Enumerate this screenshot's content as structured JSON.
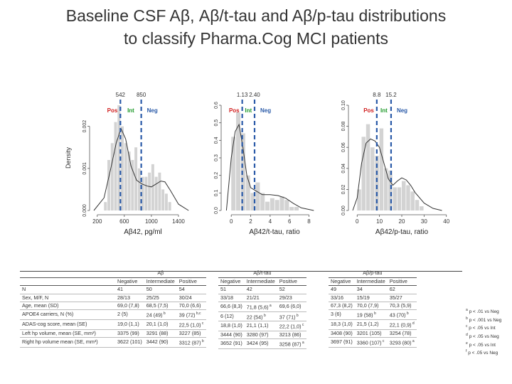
{
  "title_line1": "Baseline CSF Aβ, Aβ/t-tau and Aβ/p-tau distributions",
  "title_line2": "to classify Pharma.Cog MCI patients",
  "colors": {
    "pos": "#d01c1c",
    "int": "#1f9a2b",
    "neg": "#2a5aa8",
    "bar": "#d3d3d3",
    "curve": "#333333"
  },
  "chart_data": [
    {
      "type": "bar",
      "title": "",
      "xlabel": "Aβ42, pg/ml",
      "ylabel": "Density",
      "xlim": [
        150,
        1600
      ],
      "ylim": [
        0,
        0.0025
      ],
      "xticks": [
        200,
        600,
        1000,
        1400
      ],
      "yticks": [
        0.0,
        0.001,
        0.002
      ],
      "ytick_labels": [
        "0.000",
        "0.001",
        "0.002"
      ],
      "bin_width": 50,
      "bins_start": [
        300,
        350,
        400,
        450,
        500,
        550,
        600,
        650,
        700,
        750,
        800,
        850,
        900,
        950,
        1000,
        1050,
        1100,
        1150,
        1200,
        1250
      ],
      "bin_heights": [
        0.0002,
        0.0012,
        0.0016,
        0.0021,
        0.0025,
        0.002,
        0.0016,
        0.0014,
        0.0012,
        0.0015,
        0.001,
        0.0008,
        0.0008,
        0.0009,
        0.0011,
        0.0008,
        0.0009,
        0.0005,
        0.0004,
        0.0002
      ],
      "density_x": [
        150,
        300,
        400,
        480,
        550,
        620,
        700,
        780,
        860,
        940,
        1000,
        1060,
        1140,
        1200,
        1280,
        1400,
        1550
      ],
      "density_y": [
        0.0,
        0.0003,
        0.001,
        0.0016,
        0.00195,
        0.0017,
        0.00105,
        0.00072,
        0.00063,
        0.00058,
        0.00056,
        0.00062,
        0.0007,
        0.00068,
        0.00048,
        0.00015,
        0.0
      ],
      "cutoffs": [
        {
          "label": "Pos",
          "value": 542,
          "tick": "542"
        },
        {
          "label": "Int",
          "value": null
        },
        {
          "label": "Neg",
          "value": 850,
          "tick": "850"
        }
      ]
    },
    {
      "type": "bar",
      "title": "",
      "xlabel": "Aβ42/t-tau, ratio",
      "ylabel": "",
      "xlim": [
        -0.6,
        9.5
      ],
      "ylim": [
        0,
        0.6
      ],
      "xticks": [
        0,
        2,
        4,
        6,
        8
      ],
      "yticks": [
        0.0,
        0.1,
        0.2,
        0.3,
        0.4,
        0.5,
        0.6
      ],
      "ytick_labels": [
        "0.0",
        "0.1",
        "0.2",
        "0.3",
        "0.4",
        "0.5",
        "0.6"
      ],
      "bin_width": 0.5,
      "bins_start": [
        0.0,
        0.5,
        1.0,
        1.5,
        2.0,
        2.5,
        3.0,
        3.5,
        4.0,
        4.5,
        5.0,
        5.5,
        6.0,
        6.5
      ],
      "bin_heights": [
        0.42,
        0.56,
        0.44,
        0.2,
        0.1,
        0.16,
        0.1,
        0.05,
        0.07,
        0.06,
        0.08,
        0.06,
        0.02,
        0.02
      ],
      "density_x": [
        -0.5,
        0.0,
        0.4,
        0.8,
        1.2,
        1.6,
        2.0,
        2.6,
        3.2,
        4.0,
        4.8,
        5.6,
        6.4,
        7.2,
        8.5
      ],
      "density_y": [
        0.0,
        0.3,
        0.45,
        0.49,
        0.36,
        0.2,
        0.13,
        0.11,
        0.09,
        0.09,
        0.085,
        0.07,
        0.04,
        0.015,
        0.0
      ],
      "cutoffs": [
        {
          "label": "Pos",
          "value": 1.13,
          "tick": "1.13"
        },
        {
          "label": "Int",
          "value": null
        },
        {
          "label": "Neg",
          "value": 2.4,
          "tick": "2.40"
        }
      ]
    },
    {
      "type": "bar",
      "title": "",
      "xlabel": "Aβ42/p-tau, ratio",
      "ylabel": "",
      "xlim": [
        -2,
        42
      ],
      "ylim": [
        0,
        0.1
      ],
      "xticks": [
        0,
        10,
        20,
        30,
        40
      ],
      "yticks": [
        0.0,
        0.02,
        0.04,
        0.06,
        0.08,
        0.1
      ],
      "ytick_labels": [
        "0.00",
        "0.02",
        "0.04",
        "0.06",
        "0.08",
        "0.10"
      ],
      "bin_width": 2,
      "bins_start": [
        0,
        2,
        4,
        6,
        8,
        10,
        12,
        14,
        16,
        18,
        20,
        22,
        24,
        26,
        28
      ],
      "bin_heights": [
        0.02,
        0.07,
        0.082,
        0.06,
        0.052,
        0.078,
        0.04,
        0.038,
        0.022,
        0.022,
        0.028,
        0.024,
        0.018,
        0.01,
        0.004
      ],
      "density_x": [
        -2,
        0,
        2,
        4,
        6,
        8,
        10,
        12,
        14,
        16,
        18,
        20,
        22,
        24,
        26,
        30,
        34,
        38
      ],
      "density_y": [
        0.0,
        0.012,
        0.045,
        0.064,
        0.068,
        0.066,
        0.06,
        0.045,
        0.03,
        0.024,
        0.028,
        0.031,
        0.029,
        0.024,
        0.017,
        0.007,
        0.002,
        0.0
      ],
      "cutoffs": [
        {
          "label": "Pos",
          "value": 8.8,
          "tick": "8.8"
        },
        {
          "label": "Int",
          "value": null
        },
        {
          "label": "Neg",
          "value": 15.2,
          "tick": "15.2"
        }
      ]
    }
  ],
  "table": {
    "row_labels": [
      "N",
      "Sex, M/F, N",
      "Age, mean (SD)",
      "APOE4 carriers, N (%)",
      "ADAS-cog score, mean (SE)",
      "Left hp volume, mean (SE, mm³)",
      "Right hp volume mean (SE, mm³)"
    ],
    "groups": [
      {
        "name": "Aβ",
        "columns": [
          "Negative",
          "Intermediate",
          "Positive"
        ],
        "rows": [
          [
            "41",
            "50",
            "54"
          ],
          [
            "28/13",
            "25/25",
            "30/24"
          ],
          [
            "69,0 (7,8)",
            "68,5 (7,5)",
            "70,0 (6,6)"
          ],
          [
            "2 (5)",
            "24 (49) b",
            "39 (72) b,c"
          ],
          [
            "19,0 (1,1)",
            "20,1 (1,0)",
            "22,5 (1,0) c"
          ],
          [
            "3375 (99)",
            "3291 (88)",
            "3227 (85)"
          ],
          [
            "3622 (101)",
            "3442 (90)",
            "3312 (87) b"
          ]
        ]
      },
      {
        "name": "Aβ/t-tau",
        "columns": [
          "Negative",
          "Intermediate",
          "Positive"
        ],
        "rows": [
          [
            "51",
            "42",
            "52"
          ],
          [
            "33/18",
            "21/21",
            "29/23"
          ],
          [
            "66,6 (8,3)",
            "71,8 (5,6) a",
            "69,6 (6,0)"
          ],
          [
            "6 (12)",
            "22 (54) b",
            "37 (71) b"
          ],
          [
            "18,8 (1,0)",
            "21,1 (1,1)",
            "22,2 (1,0) c"
          ],
          [
            "3444 (90)",
            "3280 (97)",
            "3213 (86)"
          ],
          [
            "3652 (91)",
            "3424 (95)",
            "3258 (87) a"
          ]
        ]
      },
      {
        "name": "Aβ/p-tau",
        "columns": [
          "Negative",
          "Intermediate",
          "Positive"
        ],
        "rows": [
          [
            "49",
            "34",
            "62"
          ],
          [
            "33/16",
            "15/19",
            "35/27"
          ],
          [
            "67,3 (8,2)",
            "70,0 (7,9)",
            "70,3 (5,9)"
          ],
          [
            "3 (6)",
            "19 (58) b",
            "43 (70) b"
          ],
          [
            "18,3 (1,0)",
            "21,5 (1,2)",
            "22,1 (0,9) d"
          ],
          [
            "3408 (90)",
            "3201 (105)",
            "3254 (78)"
          ],
          [
            "3697 (91)",
            "3360 (107) c",
            "3293 (80) a"
          ]
        ]
      }
    ],
    "footnotes": [
      "a p < .01 vs Neg",
      "b p < .001 vs Neg",
      "c p < .05 vs Int",
      "d p < .05 vs Neg",
      "e p < .05 vs Int",
      "f p < .05 vs Neg"
    ]
  }
}
